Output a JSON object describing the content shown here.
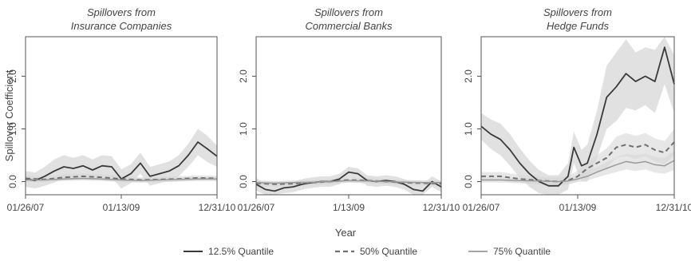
{
  "chart_data": {
    "type": "line",
    "xlabel": "Year",
    "ylabel": "Spillover Coefficient",
    "ylim": [
      -0.25,
      2.75
    ],
    "yticks": [
      "0.0",
      "1.0",
      "2.0"
    ],
    "grid": false,
    "legend_placement": "bottom-center",
    "legend": [
      {
        "label": "12.5% Quantile",
        "style": "solid",
        "color": "#3a3a3a"
      },
      {
        "label": "50% Quantile",
        "style": "dashed",
        "color": "#707070"
      },
      {
        "label": "75% Quantile",
        "style": "solid-light",
        "color": "#9a9a9a"
      }
    ],
    "panels": [
      {
        "title_lines": [
          "Spillovers from",
          "Insurance Companies"
        ],
        "xticks": [
          "01/26/07",
          "01/13/09",
          "12/31/10"
        ],
        "show_ylabel": true,
        "series": [
          {
            "x": [
              0,
              0.05,
              0.1,
              0.15,
              0.2,
              0.25,
              0.3,
              0.35,
              0.4,
              0.45,
              0.5,
              0.55,
              0.6,
              0.65,
              0.7,
              0.75,
              0.8,
              0.85,
              0.9,
              0.95,
              1.0
            ],
            "y": [
              0.05,
              0.02,
              0.1,
              0.2,
              0.28,
              0.25,
              0.3,
              0.22,
              0.3,
              0.28,
              0.05,
              0.15,
              0.35,
              0.1,
              0.15,
              0.2,
              0.3,
              0.5,
              0.75,
              0.62,
              0.48
            ],
            "band": [
              0.15,
              0.15,
              0.18,
              0.22,
              0.22,
              0.2,
              0.2,
              0.2,
              0.2,
              0.2,
              0.18,
              0.18,
              0.2,
              0.18,
              0.18,
              0.18,
              0.2,
              0.22,
              0.25,
              0.25,
              0.2
            ]
          },
          {
            "x": [
              0,
              0.1,
              0.2,
              0.3,
              0.4,
              0.5,
              0.6,
              0.7,
              0.8,
              0.9,
              1.0
            ],
            "y": [
              0.06,
              0.04,
              0.08,
              0.1,
              0.08,
              0.05,
              0.03,
              0.04,
              0.05,
              0.07,
              0.06
            ],
            "band": [
              0.05,
              0.05,
              0.06,
              0.06,
              0.06,
              0.06,
              0.05,
              0.05,
              0.05,
              0.05,
              0.05
            ]
          },
          {
            "x": [
              0,
              0.1,
              0.2,
              0.3,
              0.4,
              0.5,
              0.6,
              0.7,
              0.8,
              0.9,
              1.0
            ],
            "y": [
              0.03,
              0.03,
              0.05,
              0.06,
              0.05,
              0.03,
              0.02,
              0.03,
              0.04,
              0.05,
              0.05
            ],
            "band": [
              0.04,
              0.04,
              0.04,
              0.04,
              0.04,
              0.04,
              0.04,
              0.04,
              0.04,
              0.04,
              0.04
            ]
          }
        ]
      },
      {
        "title_lines": [
          "Spillovers from",
          "Commercial Banks"
        ],
        "xticks": [
          "01/26/07",
          "1/13/09",
          "12/31/10"
        ],
        "show_ylabel": false,
        "series": [
          {
            "x": [
              0,
              0.05,
              0.1,
              0.15,
              0.2,
              0.25,
              0.3,
              0.35,
              0.4,
              0.45,
              0.5,
              0.55,
              0.6,
              0.65,
              0.7,
              0.75,
              0.8,
              0.85,
              0.9,
              0.95,
              1.0
            ],
            "y": [
              -0.05,
              -0.15,
              -0.18,
              -0.12,
              -0.1,
              -0.05,
              -0.02,
              0.0,
              0.0,
              0.05,
              0.18,
              0.15,
              0.02,
              0.0,
              0.02,
              0.0,
              -0.05,
              -0.15,
              -0.18,
              0.0,
              -0.1
            ],
            "band": [
              0.12,
              0.12,
              0.12,
              0.1,
              0.1,
              0.1,
              0.1,
              0.1,
              0.1,
              0.1,
              0.1,
              0.1,
              0.1,
              0.1,
              0.1,
              0.1,
              0.1,
              0.12,
              0.12,
              0.1,
              0.1
            ]
          },
          {
            "x": [
              0,
              0.1,
              0.2,
              0.3,
              0.4,
              0.5,
              0.6,
              0.7,
              0.8,
              0.9,
              1.0
            ],
            "y": [
              -0.03,
              -0.05,
              -0.04,
              -0.02,
              0.0,
              0.03,
              0.02,
              0.0,
              -0.02,
              -0.03,
              -0.04
            ],
            "band": [
              0.05,
              0.05,
              0.05,
              0.05,
              0.05,
              0.05,
              0.05,
              0.05,
              0.05,
              0.05,
              0.05
            ]
          },
          {
            "x": [
              0,
              0.1,
              0.2,
              0.3,
              0.4,
              0.5,
              0.6,
              0.7,
              0.8,
              0.9,
              1.0
            ],
            "y": [
              -0.02,
              -0.03,
              -0.02,
              -0.01,
              0.0,
              0.02,
              0.01,
              0.0,
              -0.01,
              -0.02,
              -0.02
            ],
            "band": [
              0.04,
              0.04,
              0.04,
              0.04,
              0.04,
              0.04,
              0.04,
              0.04,
              0.04,
              0.04,
              0.04
            ]
          }
        ]
      },
      {
        "title_lines": [
          "Spillovers from",
          "Hedge Funds"
        ],
        "xticks": [
          "01/26/07",
          "01/13/09",
          "12/31/10"
        ],
        "show_ylabel": false,
        "series": [
          {
            "x": [
              0,
              0.05,
              0.1,
              0.15,
              0.2,
              0.25,
              0.3,
              0.35,
              0.4,
              0.45,
              0.48,
              0.52,
              0.55,
              0.6,
              0.65,
              0.7,
              0.75,
              0.8,
              0.85,
              0.9,
              0.95,
              1.0
            ],
            "y": [
              1.05,
              0.9,
              0.8,
              0.6,
              0.35,
              0.15,
              0.0,
              -0.08,
              -0.08,
              0.1,
              0.65,
              0.3,
              0.35,
              0.9,
              1.6,
              1.8,
              2.05,
              1.9,
              2.0,
              1.9,
              2.55,
              1.85
            ],
            "band": [
              0.25,
              0.28,
              0.3,
              0.3,
              0.28,
              0.25,
              0.22,
              0.2,
              0.2,
              0.25,
              0.3,
              0.3,
              0.35,
              0.45,
              0.6,
              0.65,
              0.65,
              0.55,
              0.55,
              0.6,
              0.7,
              0.55
            ]
          },
          {
            "x": [
              0,
              0.1,
              0.2,
              0.3,
              0.4,
              0.45,
              0.5,
              0.55,
              0.6,
              0.65,
              0.7,
              0.75,
              0.8,
              0.85,
              0.9,
              0.95,
              1.0
            ],
            "y": [
              0.1,
              0.1,
              0.05,
              0.02,
              0.0,
              0.02,
              0.1,
              0.25,
              0.35,
              0.45,
              0.65,
              0.7,
              0.65,
              0.7,
              0.6,
              0.55,
              0.75
            ],
            "band": [
              0.08,
              0.08,
              0.08,
              0.08,
              0.08,
              0.08,
              0.1,
              0.12,
              0.15,
              0.18,
              0.2,
              0.22,
              0.22,
              0.22,
              0.22,
              0.22,
              0.25
            ]
          },
          {
            "x": [
              0,
              0.1,
              0.2,
              0.3,
              0.4,
              0.45,
              0.5,
              0.55,
              0.6,
              0.65,
              0.7,
              0.75,
              0.8,
              0.85,
              0.9,
              0.95,
              1.0
            ],
            "y": [
              0.03,
              0.03,
              0.02,
              0.01,
              0.0,
              0.01,
              0.05,
              0.1,
              0.18,
              0.25,
              0.32,
              0.38,
              0.35,
              0.38,
              0.32,
              0.3,
              0.4
            ],
            "band": [
              0.05,
              0.05,
              0.05,
              0.05,
              0.05,
              0.05,
              0.06,
              0.08,
              0.1,
              0.12,
              0.14,
              0.15,
              0.15,
              0.15,
              0.15,
              0.15,
              0.18
            ]
          }
        ]
      }
    ]
  }
}
